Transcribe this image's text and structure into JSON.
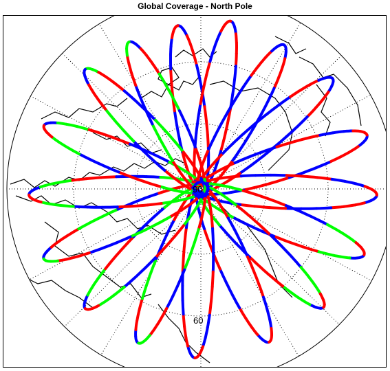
{
  "title": "Global Coverage - North Pole",
  "grid_labels": {
    "center": "90",
    "lower": "60"
  },
  "colors": {
    "red": "#ff0000",
    "green": "#00ff00",
    "blue": "#0000ff",
    "coast": "#000000",
    "grid": "#000000"
  },
  "map": {
    "projection": "azimuthal",
    "grid_style": "dotted",
    "latitude_circles": [
      60,
      90
    ]
  }
}
